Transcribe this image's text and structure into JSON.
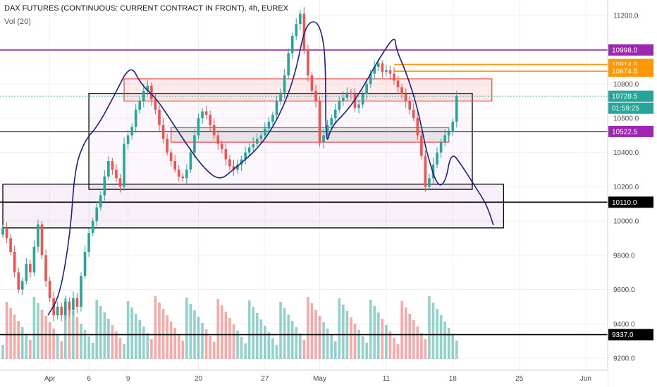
{
  "header": {
    "symbol_line": "DAX FUTURES (CONTINUOUS: CURRENT CONTRACT IN FRONT), 4h, EUREX",
    "volume_line": "Vol (20)"
  },
  "chart_data": {
    "type": "candlestick",
    "title": "DAX FUTURES (CONTINUOUS: CURRENT CONTRACT IN FRONT), 4h, EUREX",
    "ylim": [
      9130,
      11290
    ],
    "y_ticks": [
      11200,
      11000,
      10800,
      10600,
      10400,
      10200,
      10000,
      9800,
      9600,
      9400,
      9200
    ],
    "y_tick_labels": [
      "11200.0",
      "11000.0",
      "10800.0",
      "10600.0",
      "10400.0",
      "10200.0",
      "10000.0",
      "9800.0",
      "9600.0",
      "9400.0",
      "9200.0"
    ],
    "x_tick_labels": [
      {
        "label": "Apr",
        "bar": 12
      },
      {
        "label": "6",
        "bar": 22
      },
      {
        "label": "9",
        "bar": 32
      },
      {
        "label": "20",
        "bar": 50
      },
      {
        "label": "27",
        "bar": 67
      },
      {
        "label": "May",
        "bar": 81
      },
      {
        "label": "11",
        "bar": 98
      },
      {
        "label": "18",
        "bar": 115
      },
      {
        "label": "25",
        "bar": 132
      },
      {
        "label": "Jun",
        "bar": 149
      }
    ],
    "horizontal_levels": [
      {
        "value": 10998.0,
        "label": "10998.0",
        "color": "#9c27b0"
      },
      {
        "value": 10914.0,
        "label": "10914.0",
        "color": "#ff9800"
      },
      {
        "value": 10874.5,
        "label": "10874.5",
        "color": "#ff9800"
      },
      {
        "value": 10728.5,
        "label": "10728.5",
        "color": "#26a69a"
      },
      {
        "value": 10522.5,
        "label": "10522.5",
        "color": "#9c27b0"
      },
      {
        "value": 10110.0,
        "label": "10110.0",
        "color": "#000000"
      },
      {
        "value": 9337.0,
        "label": "9337.0",
        "color": "#000000"
      }
    ],
    "countdown": "01:59:25",
    "rectangles": [
      {
        "bar_start": 22,
        "bar_end": 120,
        "top": 10745,
        "bottom": 10185,
        "stroke": "#000000",
        "fill": "rgba(156,39,176,0.04)"
      },
      {
        "bar_start": 31,
        "bar_end": 125,
        "top": 10830,
        "bottom": 10700,
        "stroke": "#ef5350",
        "fill": "rgba(239,83,80,0.12)"
      },
      {
        "bar_start": 43,
        "bar_end": 114,
        "top": 10545,
        "bottom": 10460,
        "stroke": "#ef5350",
        "fill": "rgba(120,120,120,0.15)"
      },
      {
        "bar_start": 0,
        "bar_end": 128,
        "top": 10215,
        "bottom": 9960,
        "stroke": "#000000",
        "fill": "rgba(156,39,176,0.07)"
      }
    ],
    "orange_level_start_bar": 100,
    "close_sequence": [
      9960,
      9900,
      9820,
      9700,
      9600,
      9650,
      9750,
      9700,
      9850,
      9980,
      9800,
      9650,
      9550,
      9450,
      9500,
      9450,
      9530,
      9480,
      9550,
      9500,
      9680,
      9820,
      9930,
      10000,
      10080,
      10150,
      10260,
      10350,
      10300,
      10250,
      10200,
      10450,
      10500,
      10550,
      10650,
      10700,
      10760,
      10790,
      10710,
      10650,
      10560,
      10480,
      10400,
      10350,
      10300,
      10260,
      10250,
      10300,
      10400,
      10500,
      10600,
      10640,
      10620,
      10560,
      10500,
      10450,
      10420,
      10360,
      10320,
      10300,
      10330,
      10360,
      10400,
      10430,
      10450,
      10480,
      10500,
      10540,
      10580,
      10620,
      10700,
      10750,
      10850,
      10980,
      11080,
      11150,
      11210,
      11000,
      10850,
      10760,
      10700,
      10460,
      10500,
      10560,
      10600,
      10650,
      10700,
      10720,
      10750,
      10740,
      10660,
      10680,
      10740,
      10800,
      10860,
      10900,
      10920,
      10870,
      10880,
      10860,
      10820,
      10780,
      10740,
      10700,
      10650,
      10600,
      10500,
      10380,
      10200,
      10250,
      10330,
      10400,
      10460,
      10500,
      10520,
      10580,
      10728
    ]
  }
}
